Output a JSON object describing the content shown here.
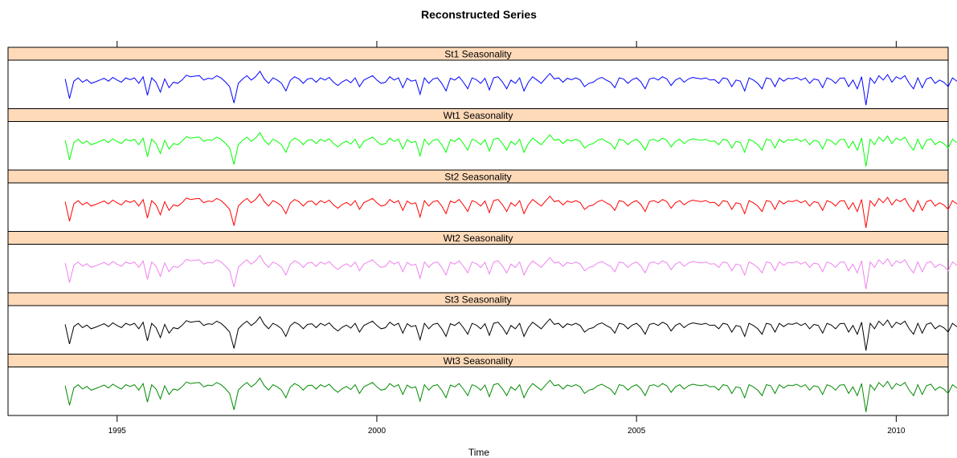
{
  "chart_data": {
    "type": "line",
    "title": "Reconstructed Series",
    "xlabel": "Time",
    "ylabel": "",
    "xlim": [
      1992.9,
      2011.0
    ],
    "x_ticks": [
      1995,
      2000,
      2005,
      2010
    ],
    "x_tick_labels": [
      "1995",
      "2000",
      "2005",
      "2010"
    ],
    "ylim": [
      -1.0,
      1.0
    ],
    "y_ticks_visible": false,
    "x_start": 1994.0,
    "frequency": 12,
    "base_shape": [
      0.25,
      -0.65,
      0.15,
      0.3,
      0.1,
      0.22,
      0.05,
      0.12,
      0.2,
      0.28,
      0.15,
      0.32,
      0.2,
      0.1,
      0.3,
      0.22,
      0.3,
      0.05,
      0.35,
      -0.5,
      0.3,
      0.1,
      -0.35,
      0.25,
      -0.15,
      0.1,
      0.05,
      0.2,
      0.42,
      0.35,
      0.38,
      0.4,
      0.2,
      0.28,
      0.25,
      0.4,
      0.3,
      0.12,
      -0.1,
      -0.85,
      0.05,
      0.25,
      0.4,
      0.2,
      0.35,
      0.6,
      0.25,
      0.05,
      0.3,
      0.2,
      0.05,
      -0.3,
      0.18,
      0.35,
      0.25,
      0.05,
      0.25,
      0.28,
      0.1,
      0.3,
      0.2,
      0.32,
      0.1,
      -0.05,
      0.12,
      0.22,
      0.08,
      0.3,
      -0.1,
      0.2,
      0.3,
      0.4,
      0.2,
      0.05,
      0.1,
      0.35,
      0.2,
      0.3,
      -0.15,
      0.28,
      0.15,
      0.2,
      -0.45,
      0.3,
      0.05,
      0.25,
      0.3,
      0.05,
      -0.3,
      0.28,
      0.2,
      0.35,
      0.1,
      -0.2,
      0.3,
      0.22,
      0.05,
      0.28,
      -0.25,
      0.3,
      0.35,
      0.12,
      -0.2,
      0.2,
      0.05,
      0.3,
      -0.3,
      0.1,
      0.35,
      0.2,
      0.05,
      0.28,
      0.5,
      0.25,
      0.3,
      0.1,
      0.28,
      0.22,
      0.3,
      0.2,
      -0.1,
      0.05,
      0.1,
      0.25,
      0.32,
      0.2,
      0.1,
      -0.15,
      0.3,
      0.25,
      0.05,
      0.22,
      0.3,
      0.12,
      -0.2,
      0.25,
      0.3,
      0.2,
      0.35,
      0.25,
      -0.05,
      0.2,
      0.3,
      0.1,
      0.25,
      0.32,
      0.28,
      0.25,
      0.3,
      0.2,
      0.22,
      0.05,
      0.3,
      0.25,
      -0.1,
      0.2,
      0.15,
      -0.3,
      0.3,
      0.2,
      0.05,
      -0.2,
      0.3,
      0.25,
      -0.1,
      0.3,
      0.15,
      0.28,
      0.25,
      0.32,
      0.2,
      0.3,
      0.05,
      0.25,
      0.2,
      -0.15,
      0.3,
      0.22,
      0.05,
      0.28,
      0.3,
      -0.1,
      0.2,
      -0.2,
      0.35,
      -0.95,
      0.3,
      0.05,
      0.4,
      0.2,
      0.45,
      0.1,
      0.35,
      0.25,
      0.4,
      0.05,
      -0.2,
      0.3,
      -0.15,
      0.25,
      0.32,
      0.05,
      0.2,
      0.1,
      -0.1,
      0.3,
      0.15,
      0.22,
      0.25,
      0.1,
      0.05,
      -0.45,
      0.2,
      0.45,
      0.42,
      0.3,
      0.2,
      0.35,
      0.25,
      0.12
    ],
    "series": [
      {
        "name": "St1 Seasonality",
        "color": "#0000ff",
        "scale": 1.0
      },
      {
        "name": "Wt1 Seasonality",
        "color": "#00ff00",
        "scale": 1.0
      },
      {
        "name": "St2 Seasonality",
        "color": "#ff0000",
        "scale": 1.0
      },
      {
        "name": "Wt2 Seasonality",
        "color": "#ee82ee",
        "scale": 1.0
      },
      {
        "name": "St3 Seasonality",
        "color": "#000000",
        "scale": 1.0
      },
      {
        "name": "Wt3 Seasonality",
        "color": "#008b00",
        "scale": 1.0
      }
    ],
    "strip_color": "#ffdab9"
  }
}
